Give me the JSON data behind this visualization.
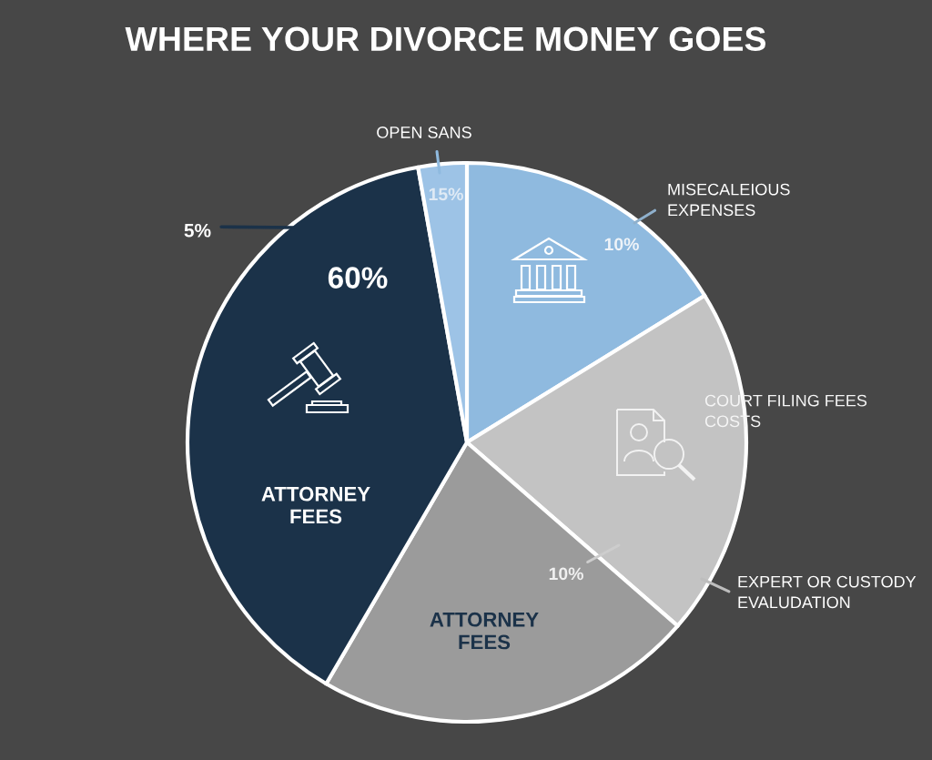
{
  "chart_data": {
    "type": "pie",
    "title": "WHERE YOUR DIVORCE MONEY GOES",
    "categories": [
      "MISECALEIOUS\nEXPENSES",
      "COURT FILING FEES\nCOSTS",
      "ATTORNEY\nFEES",
      "ATTORNEY\nFEES",
      "OPEN SANS"
    ],
    "values": [
      16.2,
      20.2,
      22.0,
      38.8,
      2.8
    ],
    "colors": [
      "#8fbadf",
      "#c3c3c3",
      "#9b9b9b",
      "#1b3249",
      "#9dc3e6"
    ],
    "annotations": [
      "15%",
      "5%",
      "10%",
      "60%",
      "10%",
      "EXPERT OR CUSTODY\nEVALUDATION"
    ]
  }
}
